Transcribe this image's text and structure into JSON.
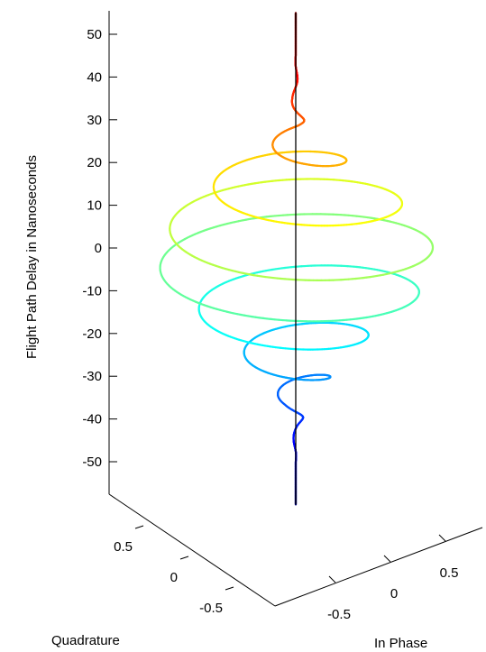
{
  "chart_data": {
    "type": "line",
    "subtype": "3d-helix",
    "title": "",
    "axes": {
      "z": {
        "label": "Flight Path Delay in Nanoseconds",
        "ticks": [
          50,
          40,
          30,
          20,
          10,
          0,
          -10,
          -20,
          -30,
          -40,
          -50
        ],
        "tick_labels": [
          "50",
          "40",
          "30",
          "20",
          "10",
          "0",
          "-10",
          "-20",
          "-30",
          "-40",
          "-50"
        ],
        "range": [
          -60,
          60
        ]
      },
      "quadrature": {
        "label": "Quadrature",
        "ticks": [
          0.5,
          0,
          -0.5
        ],
        "tick_labels": [
          "0.5",
          "0",
          "-0.5"
        ],
        "range": [
          -1,
          1
        ]
      },
      "in_phase": {
        "label": "In Phase",
        "ticks": [
          -0.5,
          0,
          0.5
        ],
        "tick_labels": [
          "-0.5",
          "0",
          "0.5"
        ],
        "range": [
          -1,
          1
        ]
      }
    },
    "series": [
      {
        "kind": "helix-trace",
        "colormap": "jet",
        "delay_range": [
          -60,
          55
        ],
        "samples": [
          {
            "delay": 55,
            "amplitude": 0.0
          },
          {
            "delay": 45,
            "amplitude": 0.0
          },
          {
            "delay": 35,
            "amplitude": 0.02
          },
          {
            "delay": 28,
            "amplitude": 0.06
          },
          {
            "delay": 22,
            "amplitude": 0.2
          },
          {
            "delay": 17,
            "amplitude": 0.42
          },
          {
            "delay": 10,
            "amplitude": 0.62
          },
          {
            "delay": 3,
            "amplitude": 0.78
          },
          {
            "delay": -3,
            "amplitude": 0.82
          },
          {
            "delay": -10,
            "amplitude": 0.72
          },
          {
            "delay": -17,
            "amplitude": 0.5
          },
          {
            "delay": -24,
            "amplitude": 0.32
          },
          {
            "delay": -30,
            "amplitude": 0.2
          },
          {
            "delay": -36,
            "amplitude": 0.08
          },
          {
            "delay": -42,
            "amplitude": 0.02
          },
          {
            "delay": -50,
            "amplitude": 0.0
          },
          {
            "delay": -60,
            "amplitude": 0.0
          }
        ],
        "turns_per_ns": 0.1
      }
    ],
    "center_line": {
      "color": "#000000",
      "delay_range": [
        -60,
        55
      ]
    }
  }
}
